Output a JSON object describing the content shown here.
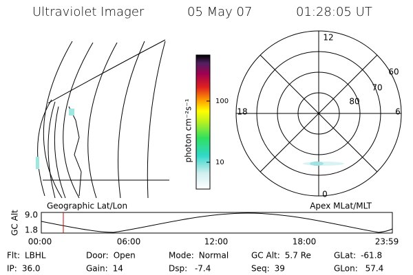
{
  "header": {
    "title": "Ultraviolet Imager",
    "date": "05 May 07",
    "time": "01:28:05 UT"
  },
  "colorbar": {
    "label": "photon cm⁻²s⁻¹",
    "ticks": [
      "100",
      "10"
    ]
  },
  "polar": {
    "hours": [
      "12",
      "18",
      "6",
      "0"
    ],
    "latitudes": [
      "60",
      "70",
      "80"
    ]
  },
  "captions": {
    "left": "Geographic Lat/Lon",
    "right": "Apex MLat/MLT"
  },
  "altitude": {
    "label": "GC Alt",
    "yticks": [
      "9.0",
      "1.8"
    ],
    "xticks": [
      "00:00",
      "06:00",
      "12:00",
      "18:00",
      "23:59"
    ]
  },
  "info": [
    [
      {
        "label": "Flt:",
        "value": "LBHL"
      },
      {
        "label": "Door:",
        "value": "Open"
      },
      {
        "label": "Mode:",
        "value": "Normal"
      },
      {
        "label": "GC Alt:",
        "value": "5.7 Re"
      },
      {
        "label": "GLat:",
        "value": "-61.8"
      }
    ],
    [
      {
        "label": "IP:",
        "value": "36.0"
      },
      {
        "label": "Gain:",
        "value": "14"
      },
      {
        "label": "Dsp:",
        "value": " -7.4"
      },
      {
        "label": "Seq:",
        "value": "39"
      },
      {
        "label": "GLon:",
        "value": " 57.4"
      }
    ]
  ]
}
